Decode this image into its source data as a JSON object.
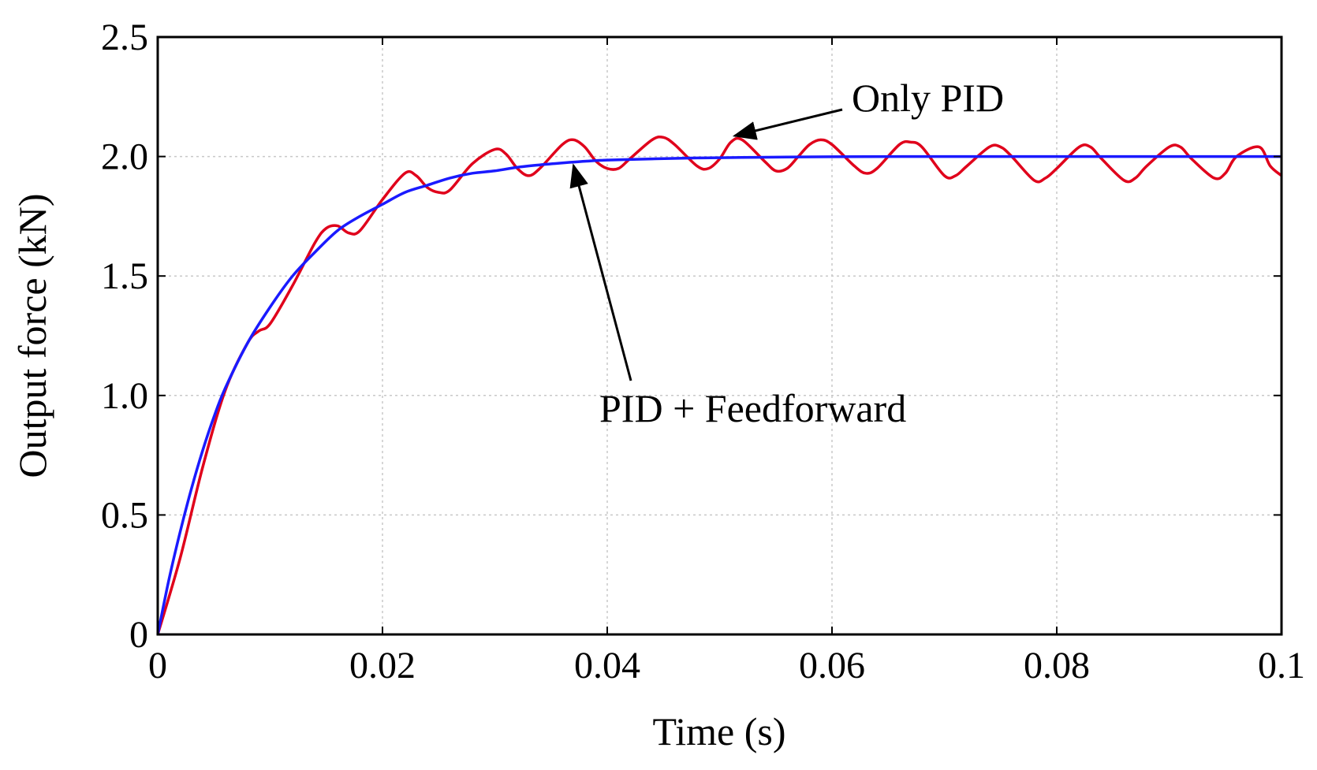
{
  "chart_data": {
    "type": "line",
    "title": "",
    "xlabel": "Time (s)",
    "ylabel": "Output force (kN)",
    "xlim": [
      0,
      0.1
    ],
    "ylim": [
      0,
      2.5
    ],
    "x_ticks": [
      0,
      0.02,
      0.04,
      0.06,
      0.08,
      0.1
    ],
    "x_tick_labels": [
      "0",
      "0.02",
      "0.04",
      "0.06",
      "0.08",
      "0.1"
    ],
    "y_ticks": [
      0,
      0.5,
      1.0,
      1.5,
      2.0,
      2.5
    ],
    "y_tick_labels": [
      "0",
      "0.5",
      "1.0",
      "1.5",
      "2.0",
      "2.5"
    ],
    "grid": true,
    "series": [
      {
        "name": "Only PID",
        "color": "#e0001b",
        "x": [
          0,
          0.002,
          0.004,
          0.006,
          0.008,
          0.009,
          0.01,
          0.012,
          0.014,
          0.015,
          0.016,
          0.017,
          0.018,
          0.02,
          0.022,
          0.023,
          0.024,
          0.025,
          0.026,
          0.028,
          0.03,
          0.031,
          0.032,
          0.033,
          0.034,
          0.036,
          0.037,
          0.038,
          0.039,
          0.04,
          0.041,
          0.042,
          0.044,
          0.045,
          0.046,
          0.048,
          0.049,
          0.05,
          0.051,
          0.052,
          0.054,
          0.055,
          0.056,
          0.057,
          0.058,
          0.059,
          0.06,
          0.062,
          0.063,
          0.064,
          0.066,
          0.067,
          0.068,
          0.07,
          0.071,
          0.072,
          0.074,
          0.075,
          0.076,
          0.078,
          0.079,
          0.08,
          0.082,
          0.083,
          0.084,
          0.086,
          0.087,
          0.088,
          0.09,
          0.091,
          0.092,
          0.094,
          0.095,
          0.096,
          0.098,
          0.099,
          0.1
        ],
        "values": [
          0,
          0.32,
          0.7,
          1.02,
          1.22,
          1.27,
          1.3,
          1.46,
          1.64,
          1.7,
          1.71,
          1.68,
          1.69,
          1.82,
          1.93,
          1.92,
          1.87,
          1.85,
          1.86,
          1.97,
          2.03,
          2.01,
          1.95,
          1.92,
          1.95,
          2.05,
          2.07,
          2.04,
          1.98,
          1.95,
          1.95,
          1.99,
          2.07,
          2.08,
          2.05,
          1.96,
          1.95,
          1.99,
          2.06,
          2.07,
          1.98,
          1.94,
          1.95,
          2.0,
          2.05,
          2.07,
          2.05,
          1.96,
          1.93,
          1.95,
          2.05,
          2.06,
          2.04,
          1.92,
          1.92,
          1.96,
          2.04,
          2.04,
          2.0,
          1.9,
          1.91,
          1.95,
          2.04,
          2.04,
          1.99,
          1.9,
          1.91,
          1.96,
          2.04,
          2.04,
          1.99,
          1.91,
          1.93,
          2.0,
          2.04,
          1.96,
          1.92
        ]
      },
      {
        "name": "PID + Feedforward",
        "color": "#1a1aff",
        "x": [
          0,
          0.001,
          0.002,
          0.003,
          0.004,
          0.005,
          0.006,
          0.008,
          0.01,
          0.012,
          0.014,
          0.016,
          0.018,
          0.02,
          0.022,
          0.024,
          0.026,
          0.028,
          0.03,
          0.032,
          0.034,
          0.036,
          0.038,
          0.04,
          0.044,
          0.048,
          0.052,
          0.056,
          0.06,
          0.07,
          0.08,
          0.09,
          0.1
        ],
        "values": [
          0,
          0.23,
          0.43,
          0.61,
          0.77,
          0.91,
          1.03,
          1.22,
          1.37,
          1.5,
          1.6,
          1.69,
          1.75,
          1.8,
          1.85,
          1.88,
          1.91,
          1.93,
          1.94,
          1.955,
          1.965,
          1.973,
          1.98,
          1.985,
          1.99,
          1.994,
          1.996,
          1.998,
          1.999,
          2.0,
          2.0,
          2.0,
          2.0
        ]
      }
    ],
    "annotations": [
      {
        "text": "Only PID",
        "target_series": "Only PID",
        "target_x": 0.051,
        "target_y": 2.08
      },
      {
        "text": "PID + Feedforward",
        "target_series": "PID + Feedforward",
        "target_x": 0.037,
        "target_y": 1.975
      }
    ]
  }
}
